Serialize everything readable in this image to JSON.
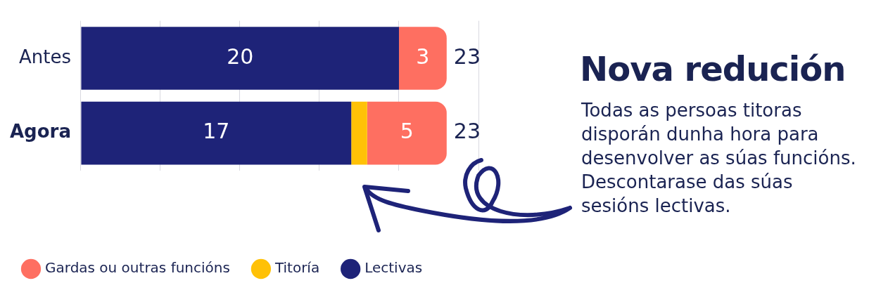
{
  "chart_data": {
    "type": "bar",
    "orientation": "horizontal",
    "stacked": true,
    "title": "Nova redución",
    "subtitle": "Todas as persoas titoras disporán dunha hora para desenvolver as súas funcións. Descontarase das súas sesións lectivas.",
    "categories": [
      "Antes",
      "Agora"
    ],
    "series": [
      {
        "name": "Lectivas",
        "color": "#1e2378",
        "values": [
          20,
          17
        ],
        "value_labels": [
          "20",
          "17"
        ]
      },
      {
        "name": "Titoría",
        "color": "#ffc107",
        "values": [
          0,
          1
        ],
        "value_labels": [
          null,
          null
        ]
      },
      {
        "name": "Gardas ou outras funcións",
        "color": "#fe6f61",
        "values": [
          3,
          5
        ],
        "value_labels": [
          "3",
          "5"
        ]
      }
    ],
    "totals": [
      "23",
      "23"
    ],
    "xlim": [
      0,
      25
    ],
    "xticks": [
      {
        "value": 0,
        "label": null
      },
      {
        "value": 5,
        "label": null
      },
      {
        "value": 10,
        "label": null
      },
      {
        "value": 15,
        "label": null
      },
      {
        "value": 20,
        "label": null
      },
      {
        "value": 25,
        "label": null
      }
    ],
    "tick_labels": "y",
    "grid": "x",
    "legend": "bottom"
  }
}
